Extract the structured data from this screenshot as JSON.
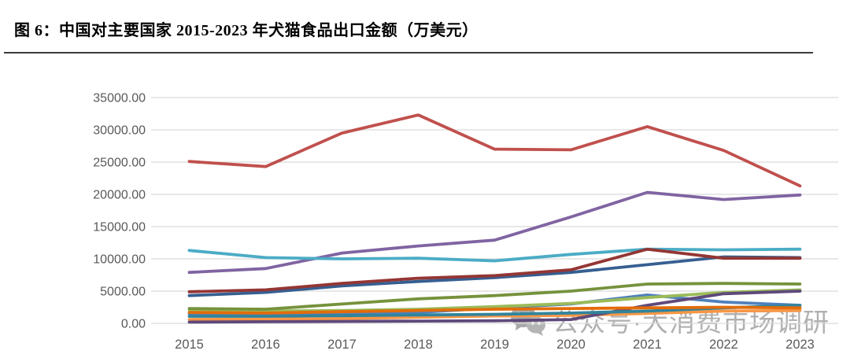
{
  "header": {
    "title": "图 6：中国对主要国家 2015-2023 年犬猫食品出口金额（万美元）"
  },
  "watermark": {
    "icon": "wechat-icon",
    "text": "公众号·大消费市场调研"
  },
  "chart_data": {
    "type": "line",
    "title": "中国对主要国家2015-2023年犬猫食品出口金额（万美元）",
    "xlabel": "",
    "ylabel": "",
    "categories": [
      "2015",
      "2016",
      "2017",
      "2018",
      "2019",
      "2020",
      "2021",
      "2022",
      "2023"
    ],
    "series": [
      {
        "name": "steel-blue-line",
        "color": "#4F81BD",
        "values": [
          1500,
          1300,
          1500,
          1700,
          2400,
          3000,
          4400,
          3300,
          2800
        ]
      },
      {
        "name": "red-line",
        "color": "#C0504D",
        "values": [
          25100,
          24300,
          29500,
          32300,
          27000,
          26900,
          30500,
          26800,
          21300
        ]
      },
      {
        "name": "light-green-line",
        "color": "#9BBB59",
        "values": [
          2100,
          1900,
          2000,
          2200,
          2600,
          3100,
          4000,
          4800,
          5200
        ]
      },
      {
        "name": "purple-line",
        "color": "#8064A2",
        "values": [
          7900,
          8500,
          10900,
          12000,
          12900,
          16500,
          20300,
          19200,
          19900
        ]
      },
      {
        "name": "cyan-line",
        "color": "#4BACC6",
        "values": [
          11300,
          10200,
          10000,
          10100,
          9700,
          10700,
          11500,
          11400,
          11500
        ]
      },
      {
        "name": "light-orange-line",
        "color": "#F79646",
        "values": [
          600,
          650,
          750,
          950,
          1150,
          1250,
          1550,
          1900,
          2000
        ]
      },
      {
        "name": "navy-line",
        "color": "#365F91",
        "values": [
          4300,
          4800,
          5800,
          6500,
          7100,
          7900,
          9100,
          10300,
          10200
        ]
      },
      {
        "name": "maroon-line",
        "color": "#943634",
        "values": [
          4900,
          5200,
          6200,
          7000,
          7400,
          8300,
          11500,
          10100,
          10100
        ]
      },
      {
        "name": "olive-line",
        "color": "#76923C",
        "values": [
          2300,
          2200,
          3000,
          3800,
          4300,
          5000,
          6100,
          6200,
          6100
        ]
      },
      {
        "name": "dark-purple-line",
        "color": "#5F497A",
        "values": [
          200,
          250,
          300,
          350,
          400,
          600,
          2800,
          4600,
          5000
        ]
      },
      {
        "name": "teal-line",
        "color": "#31849B",
        "values": [
          1100,
          1100,
          1200,
          1300,
          1400,
          1600,
          1900,
          2400,
          2800
        ]
      },
      {
        "name": "dark-orange-line",
        "color": "#E36C0A",
        "values": [
          1700,
          1600,
          1800,
          2000,
          2200,
          2300,
          2400,
          2500,
          2400
        ]
      }
    ],
    "ylim": [
      0,
      35000
    ],
    "yticks": [
      0,
      5000,
      10000,
      15000,
      20000,
      25000,
      30000,
      35000
    ],
    "ytick_decimals": 2,
    "grid": true,
    "legend": "none",
    "gridline_color": "#D9D9D9",
    "axis_label_color": "#595959"
  }
}
